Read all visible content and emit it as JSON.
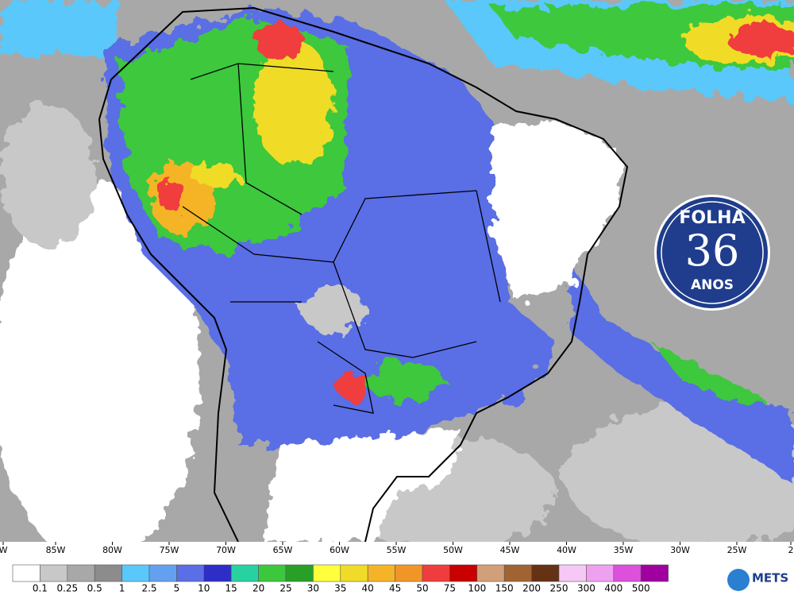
{
  "map": {
    "longitude_labels": [
      "W",
      "85W",
      "80W",
      "75W",
      "70W",
      "65W",
      "60W",
      "55W",
      "50W",
      "45W",
      "40W",
      "35W",
      "30W",
      "25W",
      "2"
    ],
    "legend": {
      "labels": [
        0.1,
        0.25,
        0.5,
        1,
        2.5,
        5,
        10,
        15,
        20,
        25,
        30,
        35,
        40,
        45,
        50,
        75,
        100,
        150,
        200,
        250,
        300,
        400,
        500
      ],
      "colors": [
        "#ffffff",
        "#c8c8c8",
        "#a8a8a8",
        "#8c8c8c",
        "#5ac8fa",
        "#64a0f0",
        "#5a6ee6",
        "#2d2dc8",
        "#28d2a0",
        "#3cc83c",
        "#28a028",
        "#ffff3c",
        "#f0dc28",
        "#f5b428",
        "#f09628",
        "#f03c3c",
        "#c80000",
        "#d2a078",
        "#a06432",
        "#643214",
        "#f5c8f5",
        "#f0a0f0",
        "#dc50dc",
        "#a000a0"
      ]
    }
  },
  "logo": {
    "top": "FOLHA",
    "number": "36",
    "bottom": "ANOS"
  },
  "brand": "METS"
}
